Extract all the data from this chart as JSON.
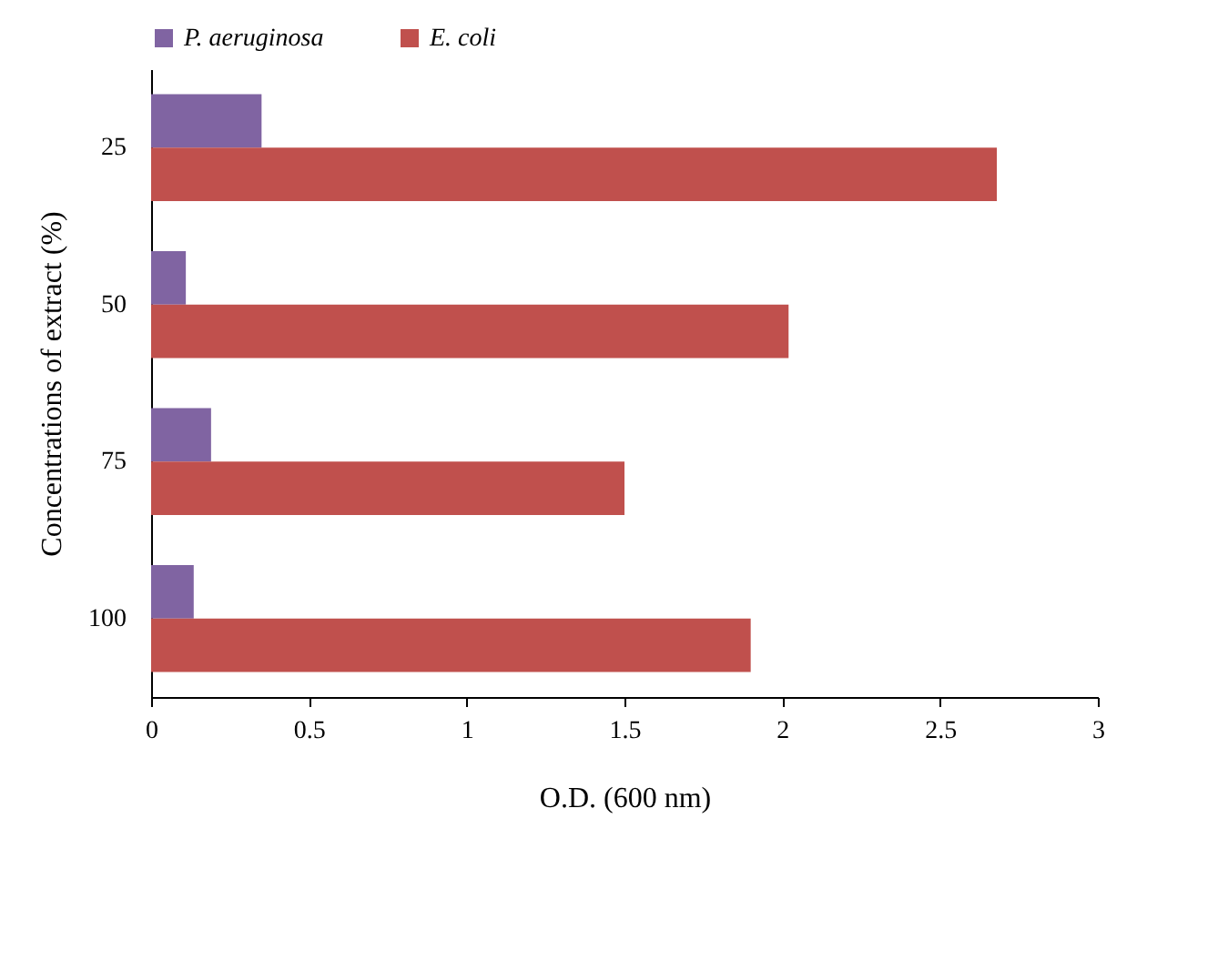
{
  "chart_data": {
    "type": "bar",
    "orientation": "horizontal",
    "xlabel": "O.D.  (600 nm)",
    "ylabel": "Concentrations of extract (%)",
    "categories": [
      "25",
      "50",
      "75",
      "100"
    ],
    "series": [
      {
        "name": "P. aeruginosa",
        "color": "#8064a2",
        "values": [
          0.35,
          0.11,
          0.19,
          0.135
        ]
      },
      {
        "name": "E. coli",
        "color": "#c0504d",
        "values": [
          2.68,
          2.02,
          1.5,
          1.9
        ]
      }
    ],
    "xlim": [
      0,
      3
    ],
    "xticks": [
      0,
      0.5,
      1,
      1.5,
      2,
      2.5,
      3
    ],
    "grid": false,
    "legend": "top"
  }
}
